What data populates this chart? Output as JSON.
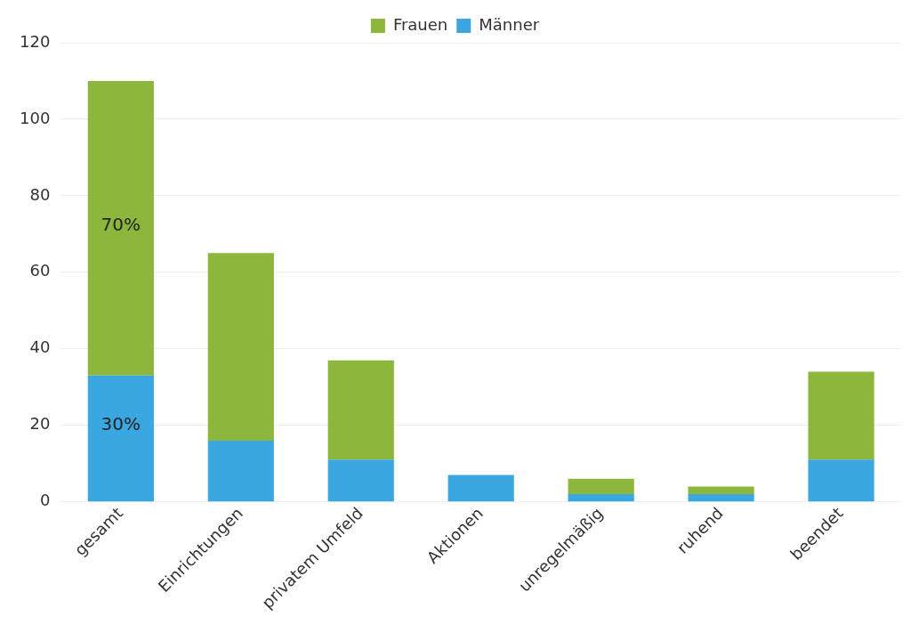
{
  "chart_data": {
    "type": "bar",
    "stacked": true,
    "categories": [
      "gesamt",
      "Einrichtungen",
      "privatem Umfeld",
      "Aktionen",
      "unregelmäßig",
      "ruhend",
      "beendet"
    ],
    "series": [
      {
        "name": "Männer",
        "color": "#3ba7e0",
        "values": [
          33,
          16,
          11,
          7,
          2,
          2,
          11
        ]
      },
      {
        "name": "Frauen",
        "color": "#8db63c",
        "values": [
          77,
          49,
          26,
          0,
          4,
          2,
          23
        ]
      }
    ],
    "annotations": [
      {
        "text": "70%",
        "x": "gesamt",
        "y": 72
      },
      {
        "text": "30%",
        "x": "gesamt",
        "y": 20
      }
    ],
    "ylim": [
      0,
      120
    ],
    "yticks": [
      0,
      20,
      40,
      60,
      80,
      100,
      120
    ],
    "grid": "y",
    "legend": "top"
  }
}
